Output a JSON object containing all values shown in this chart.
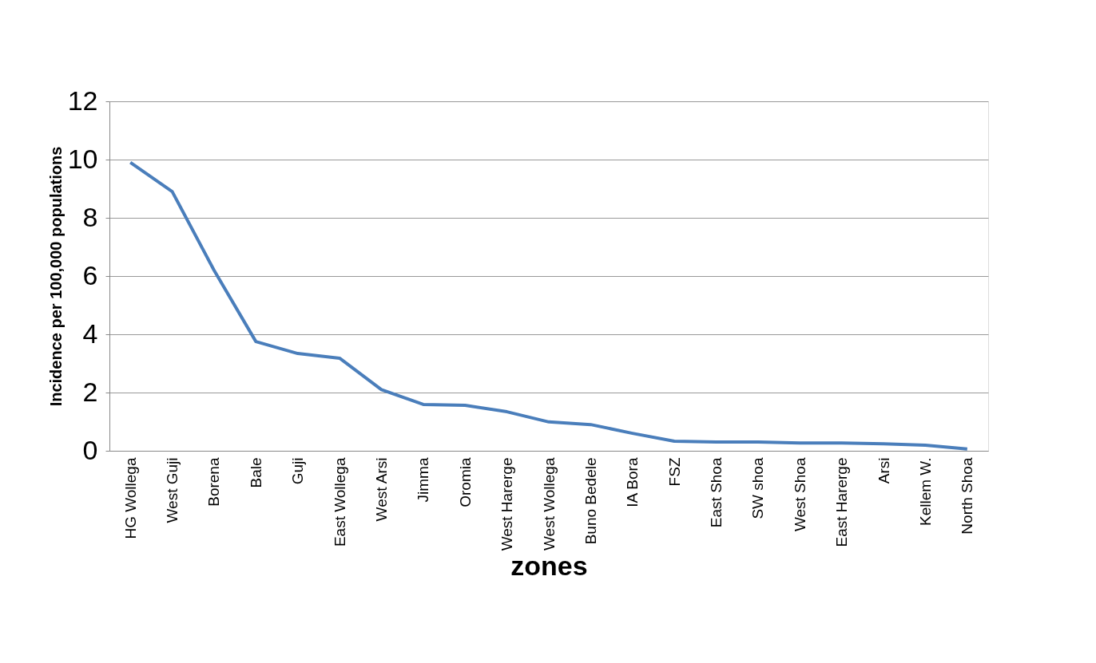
{
  "chart_data": {
    "type": "line",
    "xlabel": "zones",
    "ylabel": "Incidence per 100,000 populations",
    "categories": [
      "HG Wollega",
      "West Guji",
      "Borena",
      "Bale",
      "Guji",
      "East Wollega",
      "West Arsi",
      "Jimma",
      "Oromia",
      "West Harerge",
      "West Wollega",
      "Buno Bedele",
      "IA Bora",
      "FSZ",
      "East Shoa",
      "SW shoa",
      "West Shoa",
      "East Harerge",
      "Arsi",
      "Kellem W.",
      "North Shoa"
    ],
    "series": [
      {
        "color": "#4a7ebb",
        "values": [
          9.9,
          8.9,
          6.2,
          3.75,
          3.34,
          3.18,
          2.1,
          1.59,
          1.56,
          1.34,
          0.99,
          0.9,
          0.6,
          0.33,
          0.3,
          0.3,
          0.27,
          0.27,
          0.24,
          0.19,
          0.06
        ]
      }
    ],
    "ylim": [
      0,
      12
    ],
    "yticks": [
      0,
      2,
      4,
      6,
      8,
      10,
      12
    ],
    "grid": "y",
    "legend": false,
    "marker": "none",
    "line_style": "solid"
  }
}
